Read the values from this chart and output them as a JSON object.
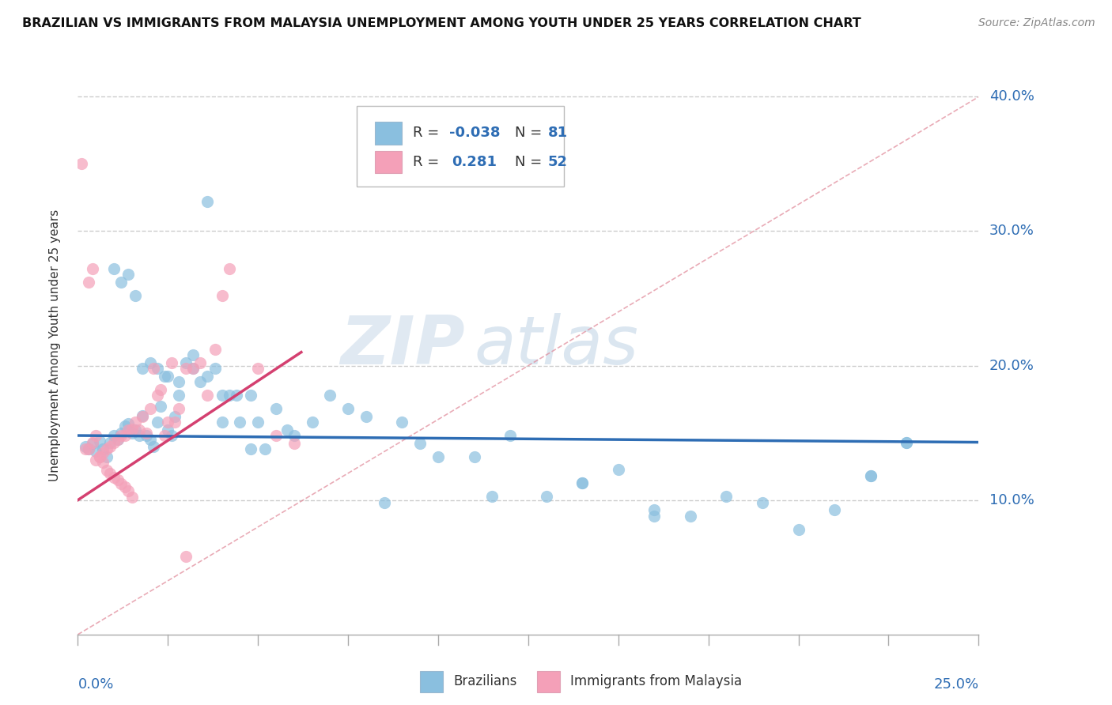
{
  "title": "BRAZILIAN VS IMMIGRANTS FROM MALAYSIA UNEMPLOYMENT AMONG YOUTH UNDER 25 YEARS CORRELATION CHART",
  "source": "Source: ZipAtlas.com",
  "ylabel": "Unemployment Among Youth under 25 years",
  "xmin": 0.0,
  "xmax": 0.25,
  "ymin": 0.0,
  "ymax": 0.43,
  "yticks": [
    0.1,
    0.2,
    0.3,
    0.4
  ],
  "ytick_labels": [
    "10.0%",
    "20.0%",
    "30.0%",
    "40.0%"
  ],
  "color_blue": "#8abfdf",
  "color_pink": "#f4a0b8",
  "color_line_blue": "#2e6db4",
  "color_line_pink": "#d44070",
  "color_dashed": "#e08898",
  "watermark_zip": "ZIP",
  "watermark_atlas": "atlas",
  "blue_r": "-0.038",
  "blue_n": "81",
  "pink_r": "0.281",
  "pink_n": "52",
  "blue_scatter_x": [
    0.002,
    0.003,
    0.004,
    0.005,
    0.006,
    0.007,
    0.008,
    0.009,
    0.01,
    0.011,
    0.012,
    0.013,
    0.014,
    0.015,
    0.016,
    0.017,
    0.018,
    0.019,
    0.02,
    0.021,
    0.022,
    0.023,
    0.024,
    0.025,
    0.026,
    0.027,
    0.028,
    0.03,
    0.032,
    0.034,
    0.036,
    0.038,
    0.04,
    0.042,
    0.045,
    0.048,
    0.05,
    0.055,
    0.058,
    0.06,
    0.065,
    0.07,
    0.075,
    0.08,
    0.085,
    0.09,
    0.095,
    0.1,
    0.11,
    0.115,
    0.12,
    0.13,
    0.14,
    0.15,
    0.16,
    0.17,
    0.18,
    0.19,
    0.2,
    0.21,
    0.22,
    0.23,
    0.01,
    0.012,
    0.014,
    0.016,
    0.018,
    0.02,
    0.022,
    0.025,
    0.028,
    0.032,
    0.036,
    0.04,
    0.044,
    0.048,
    0.052,
    0.14,
    0.16,
    0.22,
    0.23
  ],
  "blue_scatter_y": [
    0.14,
    0.138,
    0.142,
    0.136,
    0.144,
    0.138,
    0.132,
    0.143,
    0.148,
    0.145,
    0.15,
    0.155,
    0.157,
    0.15,
    0.152,
    0.148,
    0.163,
    0.148,
    0.145,
    0.14,
    0.158,
    0.17,
    0.192,
    0.152,
    0.148,
    0.162,
    0.178,
    0.202,
    0.198,
    0.188,
    0.192,
    0.198,
    0.158,
    0.178,
    0.158,
    0.178,
    0.158,
    0.168,
    0.152,
    0.148,
    0.158,
    0.178,
    0.168,
    0.162,
    0.098,
    0.158,
    0.142,
    0.132,
    0.132,
    0.103,
    0.148,
    0.103,
    0.113,
    0.123,
    0.093,
    0.088,
    0.103,
    0.098,
    0.078,
    0.093,
    0.118,
    0.143,
    0.272,
    0.262,
    0.268,
    0.252,
    0.198,
    0.202,
    0.198,
    0.192,
    0.188,
    0.208,
    0.322,
    0.178,
    0.178,
    0.138,
    0.138,
    0.113,
    0.088,
    0.118,
    0.143
  ],
  "pink_scatter_x": [
    0.001,
    0.002,
    0.003,
    0.004,
    0.005,
    0.006,
    0.007,
    0.008,
    0.009,
    0.01,
    0.011,
    0.012,
    0.013,
    0.014,
    0.015,
    0.016,
    0.017,
    0.018,
    0.019,
    0.02,
    0.021,
    0.022,
    0.023,
    0.024,
    0.025,
    0.026,
    0.027,
    0.028,
    0.03,
    0.032,
    0.034,
    0.036,
    0.038,
    0.04,
    0.042,
    0.05,
    0.055,
    0.06,
    0.003,
    0.004,
    0.005,
    0.006,
    0.007,
    0.008,
    0.009,
    0.01,
    0.011,
    0.012,
    0.013,
    0.014,
    0.015,
    0.03
  ],
  "pink_scatter_y": [
    0.35,
    0.138,
    0.138,
    0.143,
    0.13,
    0.132,
    0.135,
    0.138,
    0.14,
    0.143,
    0.145,
    0.148,
    0.148,
    0.152,
    0.153,
    0.158,
    0.152,
    0.162,
    0.15,
    0.168,
    0.198,
    0.178,
    0.182,
    0.148,
    0.158,
    0.202,
    0.158,
    0.168,
    0.198,
    0.198,
    0.202,
    0.178,
    0.212,
    0.252,
    0.272,
    0.198,
    0.148,
    0.142,
    0.262,
    0.272,
    0.148,
    0.132,
    0.128,
    0.122,
    0.12,
    0.117,
    0.115,
    0.112,
    0.11,
    0.107,
    0.102,
    0.058
  ]
}
